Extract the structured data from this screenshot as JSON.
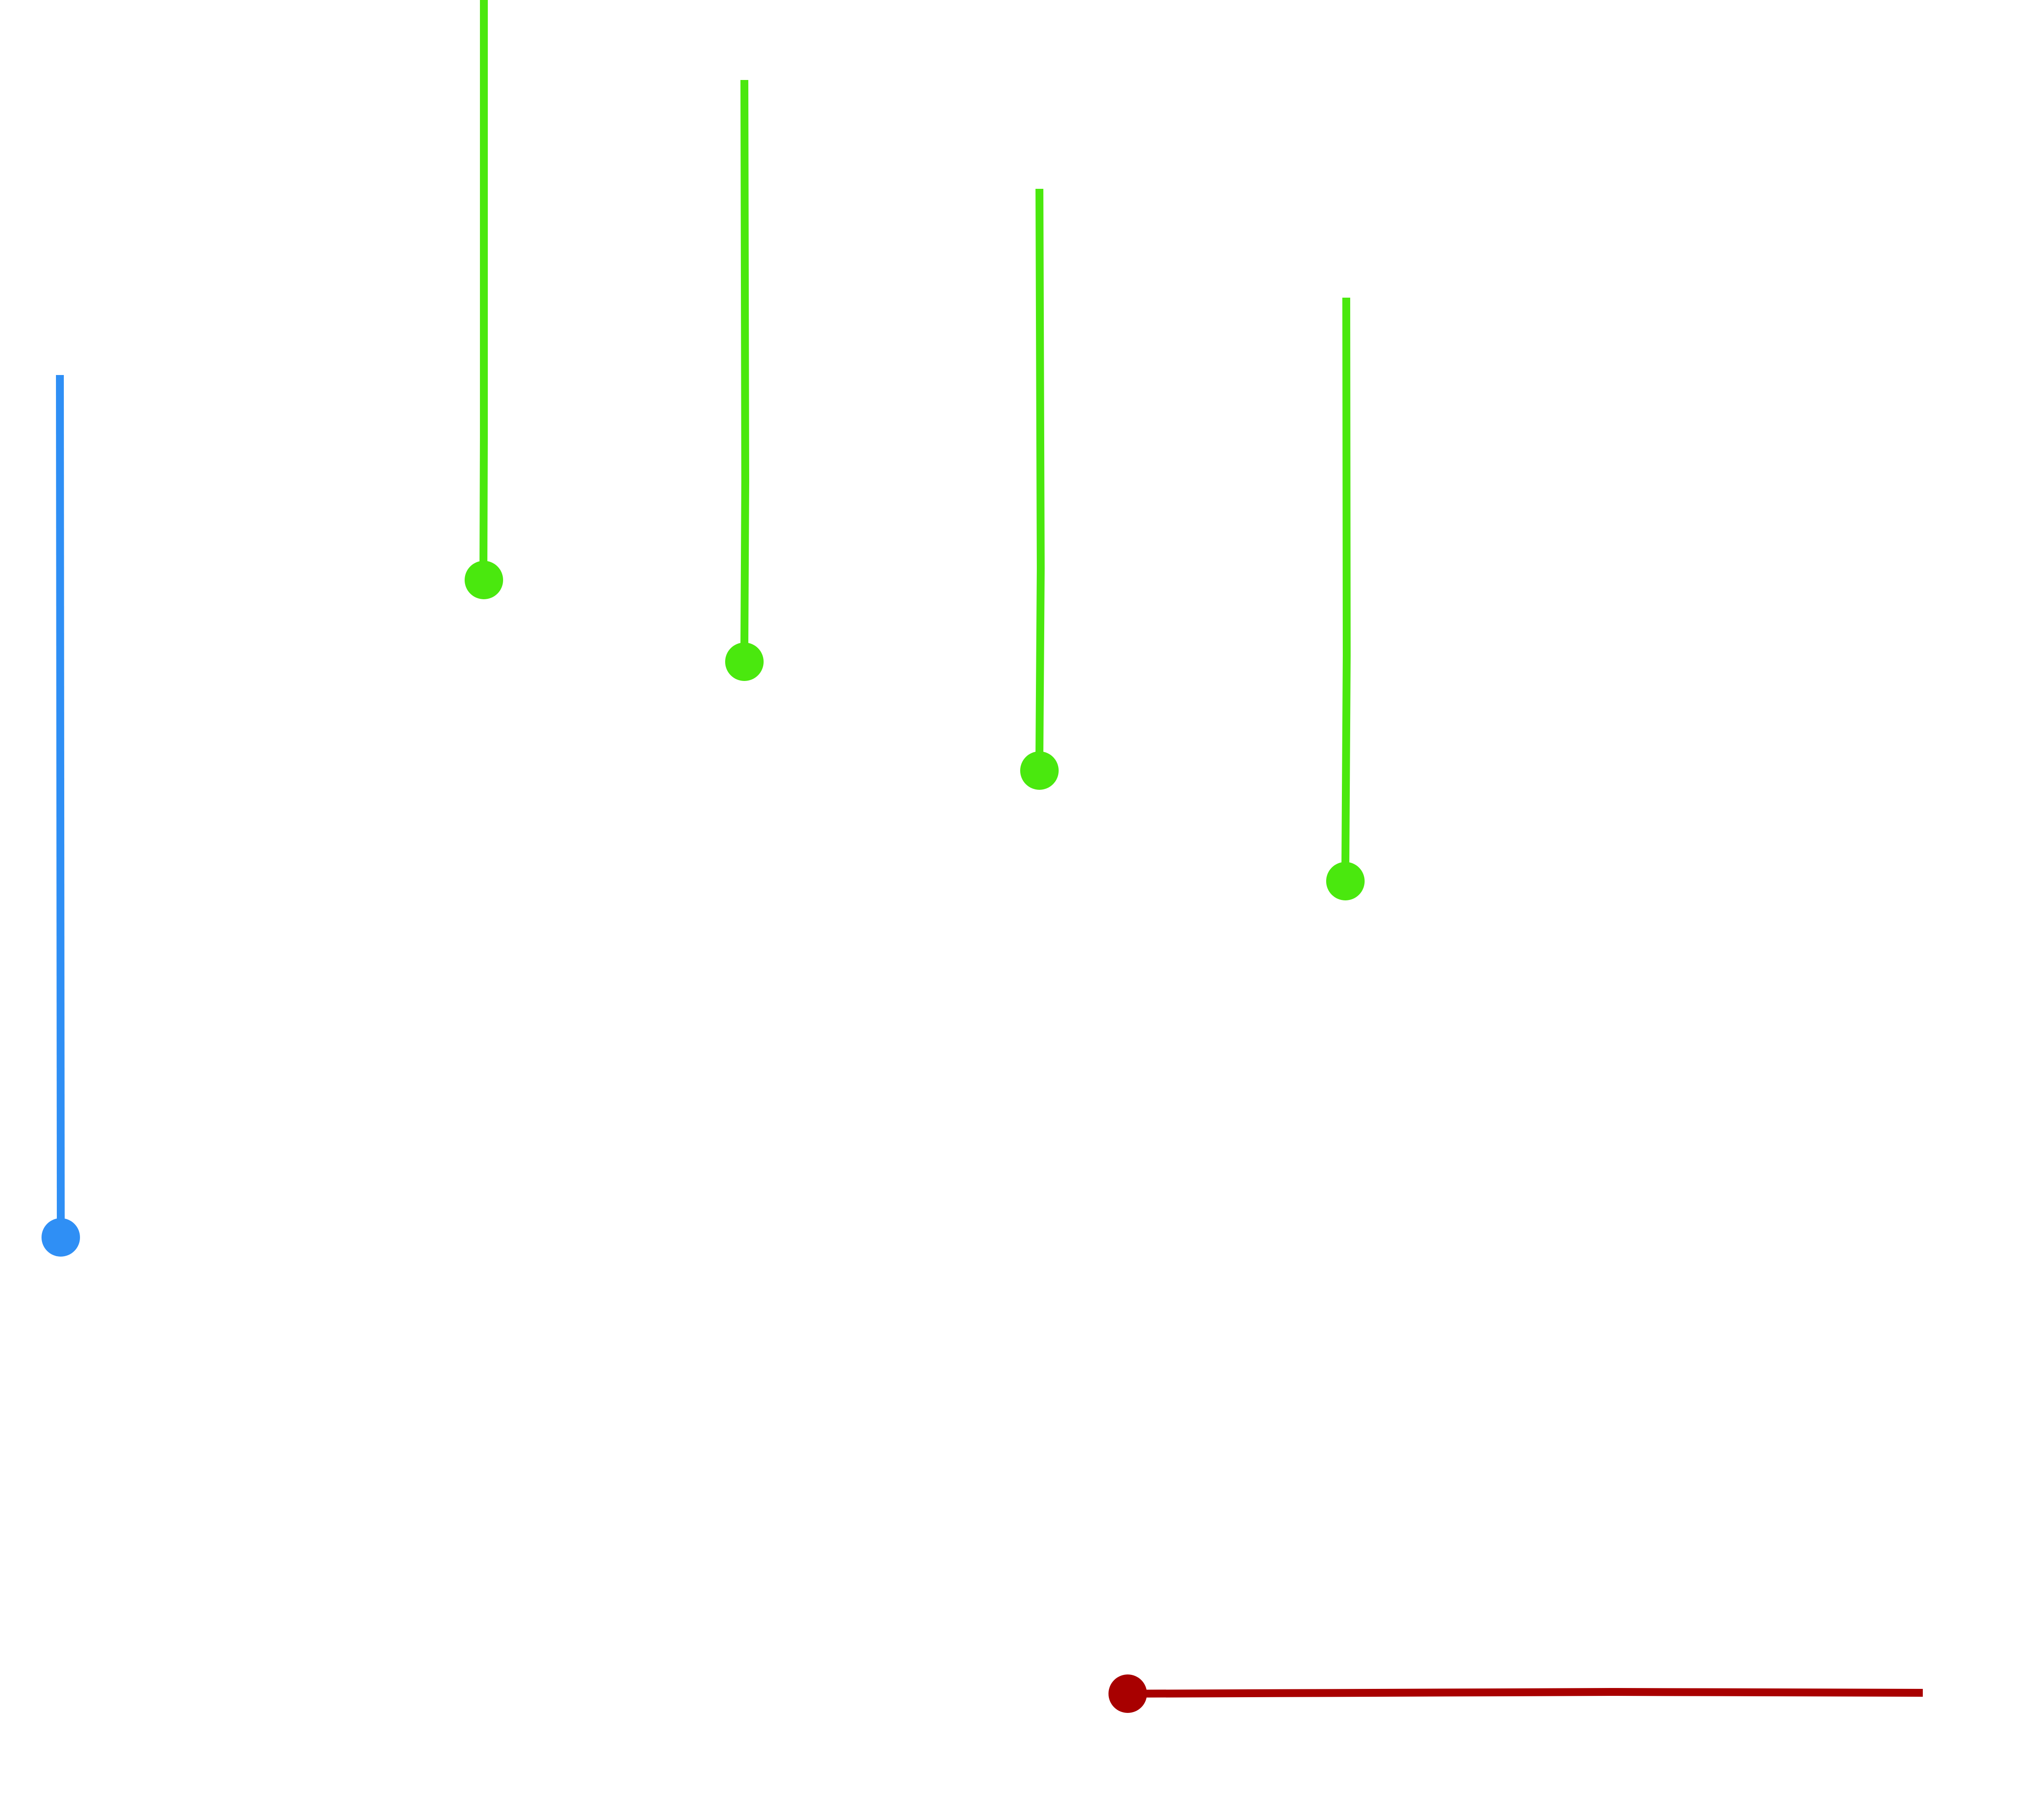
{
  "strokes": [
    {
      "name": "blue-stroke",
      "color": "#2f8ff5"
    },
    {
      "name": "green-stroke-1",
      "color": "#4ae80e"
    },
    {
      "name": "green-stroke-2",
      "color": "#4ae80e"
    },
    {
      "name": "green-stroke-3",
      "color": "#4ae80e"
    },
    {
      "name": "green-stroke-4",
      "color": "#4ae80e"
    },
    {
      "name": "red-stroke",
      "color": "#a80000"
    }
  ]
}
